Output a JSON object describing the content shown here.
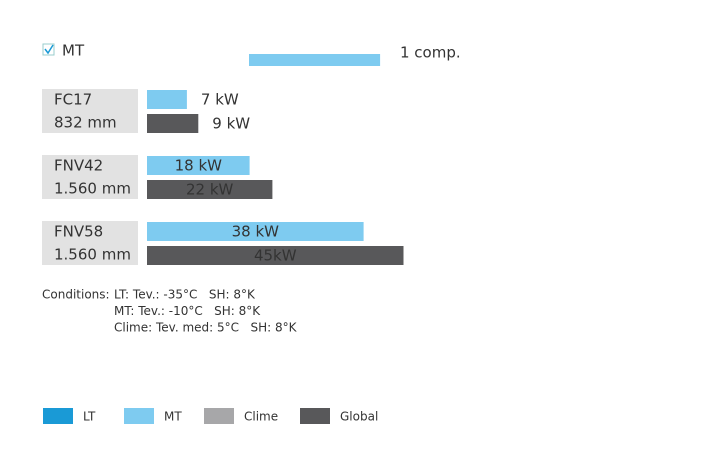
{
  "chart_data": {
    "type": "bar",
    "orientation": "horizontal",
    "filter": {
      "label": "MT",
      "checked": true
    },
    "reference": {
      "label": "1 comp.",
      "value": 23,
      "color": "#7ecbf0"
    },
    "categories": [
      "FC17",
      "FNV42",
      "FNV58"
    ],
    "category_sizes": [
      "832 mm",
      "1.560 mm",
      "1.560 mm"
    ],
    "series": [
      {
        "name": "LT",
        "color": "#1a9ad6",
        "values": [
          null,
          null,
          null
        ]
      },
      {
        "name": "MT",
        "color": "#7ecbf0",
        "values": [
          7,
          18,
          38
        ],
        "value_labels": [
          "7 kW",
          "18 kW",
          "38 kW"
        ]
      },
      {
        "name": "Clime",
        "color": "#a7a7a9",
        "values": [
          null,
          null,
          null
        ]
      },
      {
        "name": "Global",
        "color": "#58585a",
        "values": [
          9,
          22,
          45
        ],
        "value_labels": [
          "9 kW",
          "22 kW",
          "45kW"
        ]
      }
    ],
    "conditions": {
      "label": "Conditions:",
      "lines": [
        "LT: Tev.: -35°C   SH: 8°K",
        "MT: Tev.: -10°C   SH: 8°K",
        "Clime: Tev. med: 5°C   SH: 8°K"
      ]
    }
  }
}
